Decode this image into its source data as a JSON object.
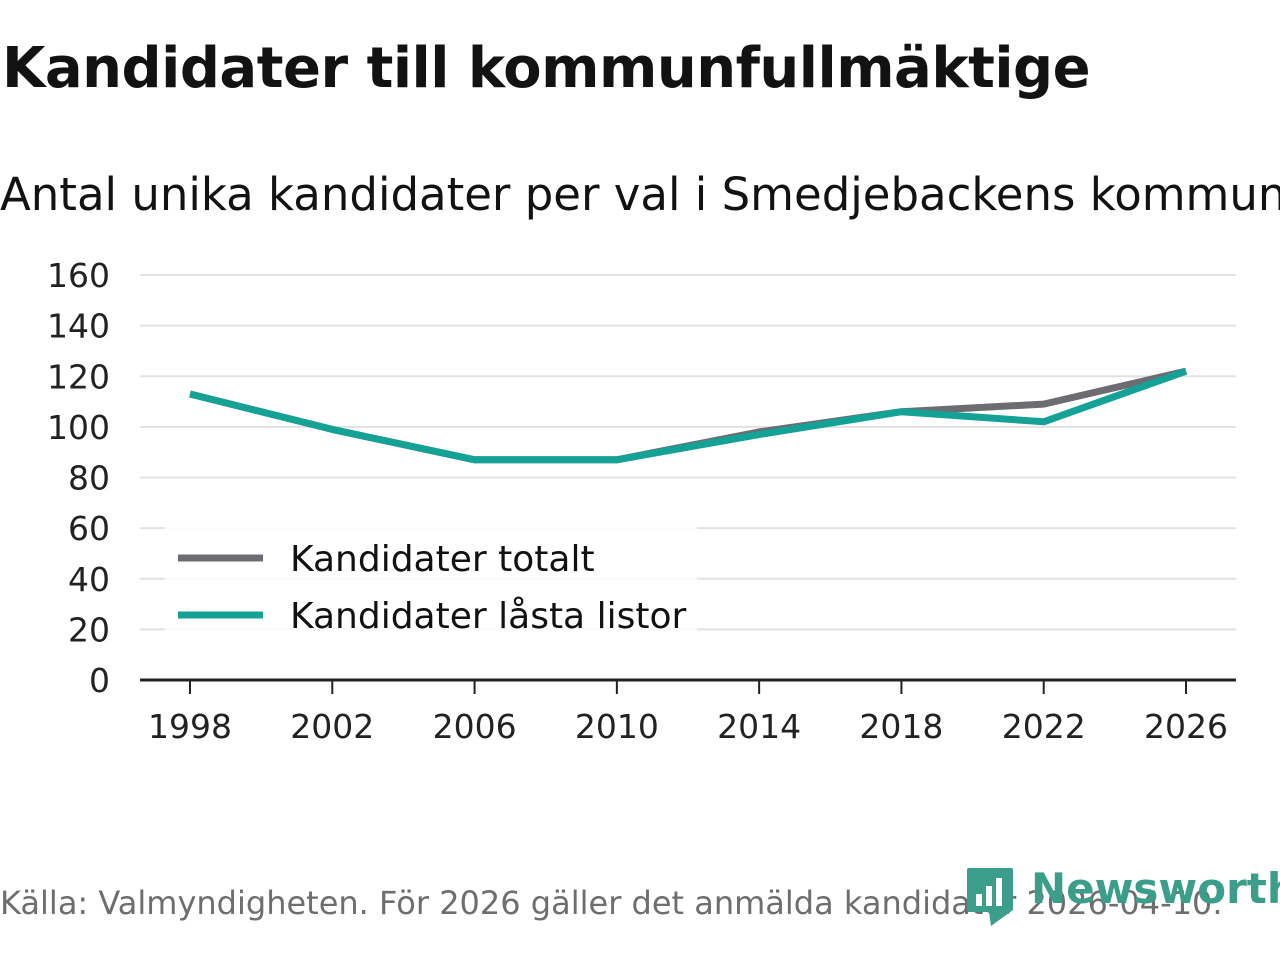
{
  "header": {
    "title": "Kandidater till kommunfullmäktige",
    "subtitle": "Antal unika kandidater per val i Smedjebackens kommun"
  },
  "footer": {
    "source": "Källa: Valmyndigheten. För 2026 gäller det anmälda kandidater 2026-04-10.",
    "brand": "Newsworthy",
    "brand_color": "#3a9e8a"
  },
  "chart_data": {
    "type": "line",
    "title": "Kandidater till kommunfullmäktige",
    "subtitle": "Antal unika kandidater per val i Smedjebackens kommun",
    "x": [
      1998,
      2002,
      2006,
      2010,
      2014,
      2018,
      2022,
      2026
    ],
    "x_tick_labels": [
      "1998",
      "2002",
      "2006",
      "2010",
      "2014",
      "2018",
      "2022",
      "2026"
    ],
    "y_ticks": [
      0,
      20,
      40,
      60,
      80,
      100,
      120,
      140,
      160
    ],
    "ylim": [
      0,
      160
    ],
    "grid": true,
    "legend_position": "bottom-left",
    "series": [
      {
        "name": "Kandidater totalt",
        "color": "#6d6c72",
        "values": [
          113,
          99,
          87,
          87,
          98,
          106,
          109,
          122
        ]
      },
      {
        "name": "Kandidater låsta listor",
        "color": "#14a196",
        "values": [
          113,
          99,
          87,
          87,
          97,
          106,
          102,
          122
        ]
      }
    ]
  }
}
